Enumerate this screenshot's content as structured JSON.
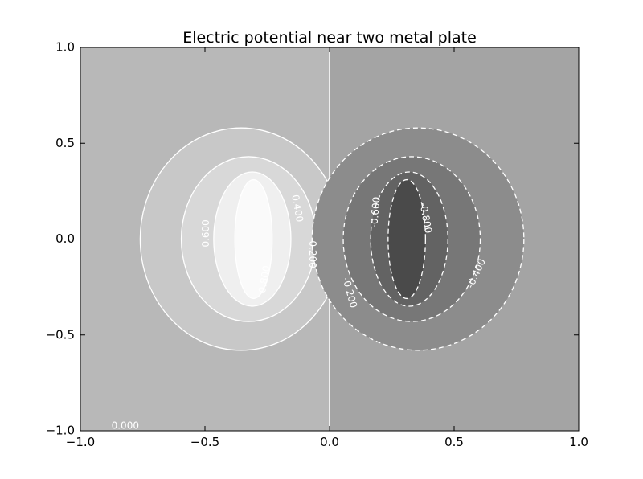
{
  "chart_data": {
    "type": "contour",
    "title": "Electric potential near two metal plate",
    "xlabel": "",
    "ylabel": "",
    "xlim": [
      -1.0,
      1.0
    ],
    "ylim": [
      -1.0,
      1.0
    ],
    "x_ticks": [
      {
        "value": -1.0,
        "label": "−1.0"
      },
      {
        "value": -0.5,
        "label": "−0.5"
      },
      {
        "value": 0.0,
        "label": "0.0"
      },
      {
        "value": 0.5,
        "label": "0.5"
      },
      {
        "value": 1.0,
        "label": "1.0"
      }
    ],
    "y_ticks": [
      {
        "value": 1.0,
        "label": "1.0"
      },
      {
        "value": 0.5,
        "label": "0.5"
      },
      {
        "value": 0.0,
        "label": "0.0"
      },
      {
        "value": -0.5,
        "label": "−0.5"
      },
      {
        "value": -1.0,
        "label": "−1.0"
      }
    ],
    "grid": false,
    "colormap": "gray",
    "background_colors": {
      "positive_side": "#b8b8b8",
      "negative_side": "#a4a4a4"
    },
    "zero_line": {
      "x": 0.0,
      "label": "0.000",
      "label_position": {
        "x": -0.82,
        "y": -0.99
      }
    },
    "positive_levels": [
      {
        "value": 0.2,
        "label": "0.200",
        "cx": -0.355,
        "cy": 0.0,
        "rx": 0.405,
        "ry": 0.58,
        "fill": "#c8c8c8",
        "line": "solid",
        "label_position": {
          "x": -0.07,
          "y": -0.08
        },
        "label_rotation": 90
      },
      {
        "value": 0.4,
        "label": "0.400",
        "cx": -0.325,
        "cy": 0.0,
        "rx": 0.27,
        "ry": 0.43,
        "fill": "#d8d8d8",
        "line": "solid",
        "label_position": {
          "x": -0.13,
          "y": 0.16
        },
        "label_rotation": 80
      },
      {
        "value": 0.6,
        "label": "0.600",
        "cx": -0.31,
        "cy": 0.0,
        "rx": 0.155,
        "ry": 0.35,
        "fill": "#efefef",
        "line": "solid",
        "label_position": {
          "x": -0.495,
          "y": 0.03
        },
        "label_rotation": -90
      },
      {
        "value": 0.8,
        "label": "0.800",
        "cx": -0.305,
        "cy": 0.0,
        "rx": 0.075,
        "ry": 0.31,
        "fill": "#fafafa",
        "line": "solid",
        "label_position": {
          "x": -0.26,
          "y": -0.21
        },
        "label_rotation": -80
      }
    ],
    "negative_levels": [
      {
        "value": -0.2,
        "label": "-0.200",
        "cx": 0.355,
        "cy": 0.0,
        "rx": 0.425,
        "ry": 0.58,
        "fill": "#8c8c8c",
        "line": "dashed",
        "label_position": {
          "x": 0.08,
          "y": -0.28
        },
        "label_rotation": 75
      },
      {
        "value": -0.4,
        "label": "-0.400",
        "cx": 0.33,
        "cy": 0.0,
        "rx": 0.275,
        "ry": 0.43,
        "fill": "#777777",
        "line": "dashed",
        "label_position": {
          "x": 0.59,
          "y": -0.18
        },
        "label_rotation": -65
      },
      {
        "value": -0.6,
        "label": "-0.600",
        "cx": 0.32,
        "cy": 0.0,
        "rx": 0.155,
        "ry": 0.35,
        "fill": "#636363",
        "line": "dashed",
        "label_position": {
          "x": 0.185,
          "y": 0.14
        },
        "label_rotation": -85
      },
      {
        "value": -0.8,
        "label": "-0.800",
        "cx": 0.31,
        "cy": 0.0,
        "rx": 0.075,
        "ry": 0.31,
        "fill": "#4a4a4a",
        "line": "dashed",
        "label_position": {
          "x": 0.385,
          "y": 0.11
        },
        "label_rotation": 80
      }
    ]
  }
}
